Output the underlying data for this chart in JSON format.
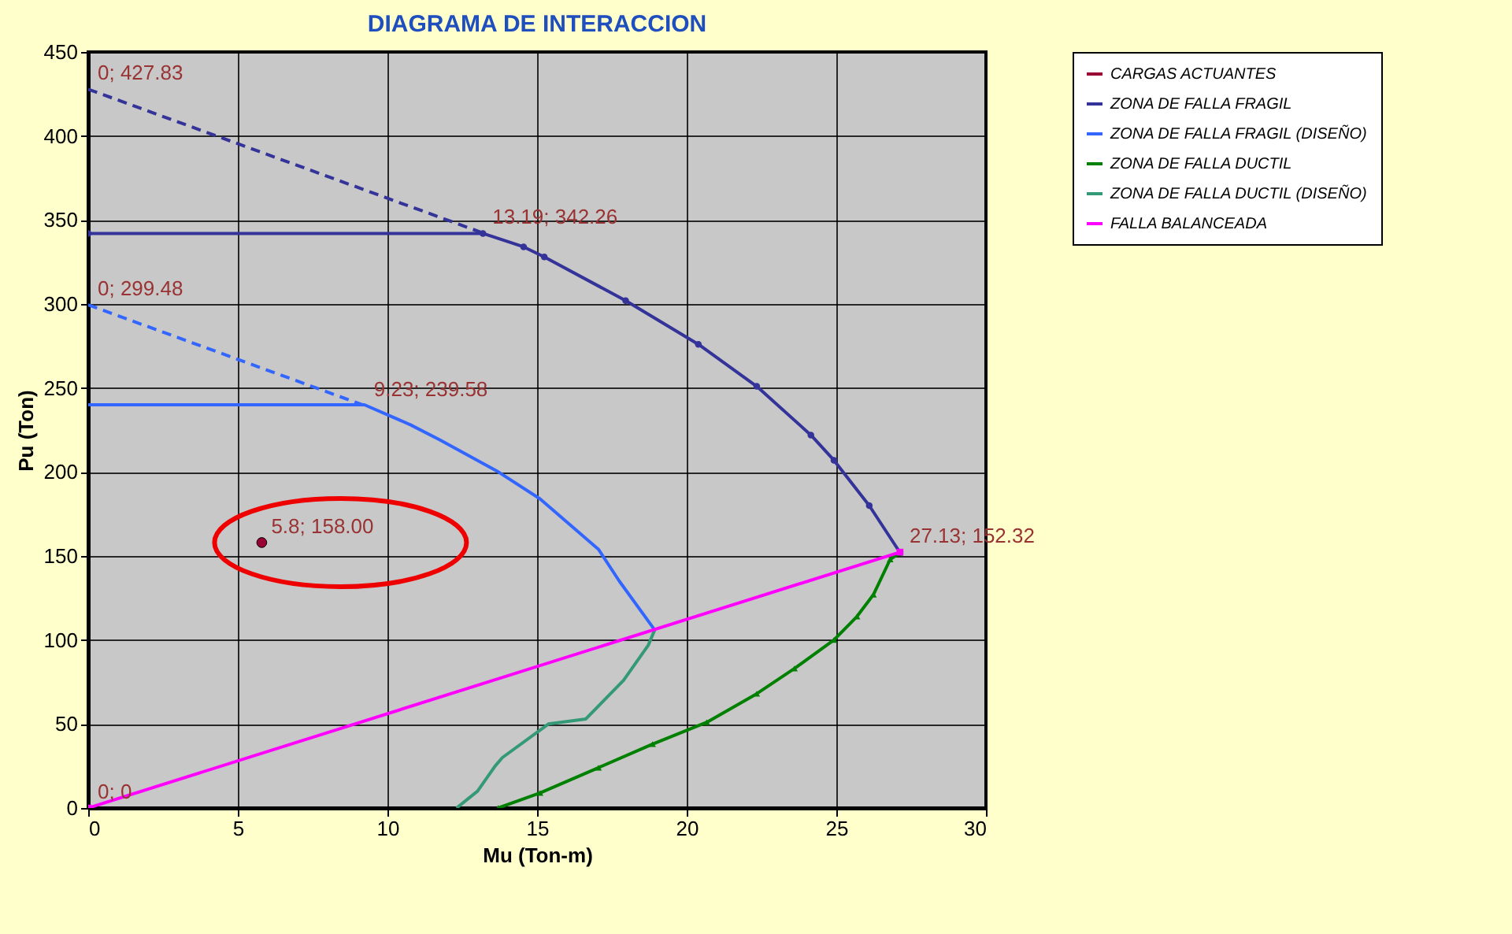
{
  "chart_data": {
    "type": "line",
    "title": "DIAGRAMA DE INTERACCION",
    "xlabel": "Mu (Ton-m)",
    "ylabel": "Pu (Ton)",
    "xlim": [
      0,
      30
    ],
    "xticks": [
      0,
      5,
      10,
      15,
      20,
      25,
      30
    ],
    "ylim": [
      0,
      450
    ],
    "yticks": [
      0,
      50,
      100,
      150,
      200,
      250,
      300,
      350,
      400,
      450
    ],
    "grid": true,
    "legend": "right",
    "series": [
      {
        "name": "CARGAS ACTUANTES",
        "type": "scatter",
        "marker": "circle",
        "color": "#990033",
        "x": [
          5.8
        ],
        "values": [
          158
        ],
        "value_labels": [
          "5.8; 158.00"
        ]
      },
      {
        "name": "ZONA DE FALLA FRAGIL",
        "color": "#333399",
        "marker": "circle",
        "x": [
          0,
          13.19,
          14.55,
          15.24,
          17.96,
          20.39,
          22.34,
          24.15,
          24.92,
          26.1,
          27.13
        ],
        "values": [
          342,
          342,
          334,
          328,
          302,
          276,
          251,
          222,
          207,
          180,
          152
        ]
      },
      {
        "color": "#333399",
        "line_style": "dashed",
        "x": [
          0,
          13.19
        ],
        "values": [
          427.83,
          342.26
        ],
        "value_labels": [
          "0; 427.83",
          "13.19; 342.26"
        ]
      },
      {
        "name": "ZONA DE FALLA FRAGIL (DISEÑO)",
        "color": "#3366ff",
        "x": [
          0,
          9.23,
          10.78,
          11.76,
          13.71,
          15.1,
          17.05,
          17.75,
          18.93
        ],
        "values": [
          240,
          240,
          228,
          219,
          200,
          184,
          154,
          135,
          106
        ]
      },
      {
        "color": "#3366ff",
        "line_style": "dashed",
        "x": [
          0,
          9.23
        ],
        "values": [
          299.48,
          239.58
        ],
        "value_labels": [
          "0; 299.48",
          "9.23; 239.58"
        ]
      },
      {
        "name": "ZONA DE FALLA DUCTIL",
        "color": "#008000",
        "marker": "triangle",
        "x": [
          13.7,
          15.1,
          17.05,
          18.86,
          20.67,
          22.34,
          23.6,
          24.92,
          25.69,
          26.24,
          26.8,
          27.13
        ],
        "values": [
          0,
          9,
          24,
          38,
          51,
          68,
          83,
          100,
          114,
          127,
          148,
          152
        ]
      },
      {
        "name": "ZONA DE FALLA DUCTIL (DISEÑO)",
        "color": "#339977",
        "x": [
          12.31,
          13.01,
          13.6,
          13.84,
          15.38,
          16.63,
          17.89,
          18.72,
          18.93
        ],
        "values": [
          0,
          10,
          25,
          30,
          50,
          53,
          76,
          97,
          106
        ]
      },
      {
        "name": "FALLA BALANCEADA",
        "color": "#ff00ff",
        "marker": "square",
        "x": [
          0,
          27.13
        ],
        "values": [
          0,
          152.32
        ],
        "value_labels": [
          "0; 0",
          "27.13; 152.32"
        ]
      }
    ]
  }
}
